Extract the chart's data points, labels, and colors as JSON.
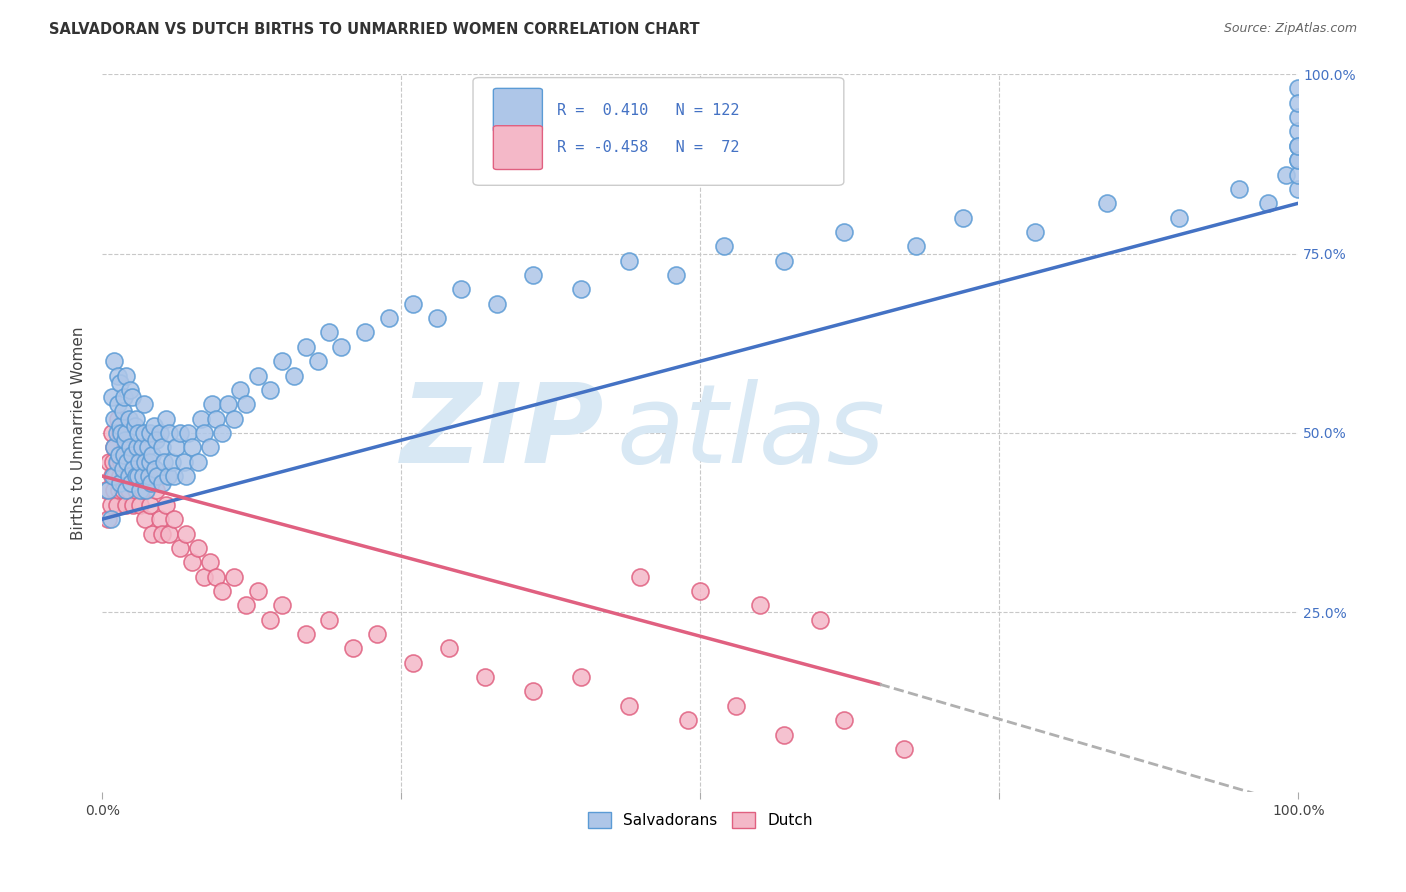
{
  "title": "SALVADORAN VS DUTCH BIRTHS TO UNMARRIED WOMEN CORRELATION CHART",
  "source": "Source: ZipAtlas.com",
  "ylabel": "Births to Unmarried Women",
  "background_color": "#ffffff",
  "grid_color": "#c8c8c8",
  "salvadoran_color": "#aec6e8",
  "salvadoran_edge_color": "#5b9bd5",
  "dutch_color": "#f4b8c8",
  "dutch_edge_color": "#e06080",
  "trend_salvadoran_color": "#4472c4",
  "trend_dutch_color": "#e06080",
  "trend_dutch_dash_color": "#b0b0b0",
  "r_salvadoran": 0.41,
  "n_salvadoran": 122,
  "r_dutch": -0.458,
  "n_dutch": 72,
  "watermark_zip": "ZIP",
  "watermark_atlas": "atlas",
  "watermark_color": "#d8e8f4",
  "xlim": [
    0.0,
    1.0
  ],
  "ylim": [
    0.0,
    1.0
  ],
  "salv_x": [
    0.005,
    0.007,
    0.008,
    0.009,
    0.01,
    0.01,
    0.01,
    0.012,
    0.012,
    0.013,
    0.013,
    0.014,
    0.015,
    0.015,
    0.015,
    0.016,
    0.017,
    0.017,
    0.018,
    0.018,
    0.019,
    0.02,
    0.02,
    0.02,
    0.021,
    0.022,
    0.022,
    0.023,
    0.023,
    0.024,
    0.025,
    0.025,
    0.026,
    0.027,
    0.028,
    0.028,
    0.029,
    0.03,
    0.03,
    0.031,
    0.032,
    0.033,
    0.034,
    0.035,
    0.035,
    0.036,
    0.037,
    0.038,
    0.039,
    0.04,
    0.04,
    0.041,
    0.042,
    0.043,
    0.044,
    0.045,
    0.046,
    0.048,
    0.05,
    0.05,
    0.052,
    0.053,
    0.055,
    0.056,
    0.058,
    0.06,
    0.062,
    0.065,
    0.068,
    0.07,
    0.072,
    0.075,
    0.08,
    0.083,
    0.085,
    0.09,
    0.092,
    0.095,
    0.1,
    0.105,
    0.11,
    0.115,
    0.12,
    0.13,
    0.14,
    0.15,
    0.16,
    0.17,
    0.18,
    0.19,
    0.2,
    0.22,
    0.24,
    0.26,
    0.28,
    0.3,
    0.33,
    0.36,
    0.4,
    0.44,
    0.48,
    0.52,
    0.57,
    0.62,
    0.68,
    0.72,
    0.78,
    0.84,
    0.9,
    0.95,
    0.975,
    0.99,
    1.0,
    1.0,
    1.0,
    1.0,
    1.0,
    1.0,
    1.0,
    1.0,
    1.0,
    1.0
  ],
  "salv_y": [
    0.42,
    0.38,
    0.55,
    0.44,
    0.48,
    0.52,
    0.6,
    0.46,
    0.5,
    0.54,
    0.58,
    0.47,
    0.43,
    0.51,
    0.57,
    0.5,
    0.45,
    0.53,
    0.47,
    0.55,
    0.49,
    0.42,
    0.5,
    0.58,
    0.46,
    0.44,
    0.52,
    0.48,
    0.56,
    0.43,
    0.47,
    0.55,
    0.45,
    0.51,
    0.44,
    0.52,
    0.48,
    0.44,
    0.5,
    0.46,
    0.42,
    0.48,
    0.44,
    0.5,
    0.54,
    0.46,
    0.42,
    0.48,
    0.44,
    0.46,
    0.5,
    0.43,
    0.47,
    0.51,
    0.45,
    0.49,
    0.44,
    0.5,
    0.43,
    0.48,
    0.46,
    0.52,
    0.44,
    0.5,
    0.46,
    0.44,
    0.48,
    0.5,
    0.46,
    0.44,
    0.5,
    0.48,
    0.46,
    0.52,
    0.5,
    0.48,
    0.54,
    0.52,
    0.5,
    0.54,
    0.52,
    0.56,
    0.54,
    0.58,
    0.56,
    0.6,
    0.58,
    0.62,
    0.6,
    0.64,
    0.62,
    0.64,
    0.66,
    0.68,
    0.66,
    0.7,
    0.68,
    0.72,
    0.7,
    0.74,
    0.72,
    0.76,
    0.74,
    0.78,
    0.76,
    0.8,
    0.78,
    0.82,
    0.8,
    0.84,
    0.82,
    0.86,
    0.84,
    0.88,
    0.86,
    0.9,
    0.88,
    0.92,
    0.9,
    0.94,
    0.98,
    0.96
  ],
  "dutch_x": [
    0.003,
    0.005,
    0.006,
    0.007,
    0.008,
    0.008,
    0.009,
    0.01,
    0.01,
    0.011,
    0.012,
    0.013,
    0.013,
    0.014,
    0.015,
    0.015,
    0.016,
    0.017,
    0.018,
    0.019,
    0.02,
    0.02,
    0.022,
    0.023,
    0.025,
    0.026,
    0.028,
    0.03,
    0.032,
    0.034,
    0.036,
    0.038,
    0.04,
    0.042,
    0.045,
    0.048,
    0.05,
    0.053,
    0.056,
    0.06,
    0.065,
    0.07,
    0.075,
    0.08,
    0.085,
    0.09,
    0.095,
    0.1,
    0.11,
    0.12,
    0.13,
    0.14,
    0.15,
    0.17,
    0.19,
    0.21,
    0.23,
    0.26,
    0.29,
    0.32,
    0.36,
    0.4,
    0.44,
    0.49,
    0.53,
    0.57,
    0.62,
    0.67,
    0.45,
    0.5,
    0.55,
    0.6
  ],
  "dutch_y": [
    0.42,
    0.38,
    0.46,
    0.4,
    0.44,
    0.5,
    0.46,
    0.42,
    0.48,
    0.44,
    0.4,
    0.46,
    0.52,
    0.42,
    0.44,
    0.5,
    0.46,
    0.42,
    0.44,
    0.48,
    0.4,
    0.46,
    0.42,
    0.44,
    0.46,
    0.4,
    0.42,
    0.44,
    0.4,
    0.42,
    0.38,
    0.44,
    0.4,
    0.36,
    0.42,
    0.38,
    0.36,
    0.4,
    0.36,
    0.38,
    0.34,
    0.36,
    0.32,
    0.34,
    0.3,
    0.32,
    0.3,
    0.28,
    0.3,
    0.26,
    0.28,
    0.24,
    0.26,
    0.22,
    0.24,
    0.2,
    0.22,
    0.18,
    0.2,
    0.16,
    0.14,
    0.16,
    0.12,
    0.1,
    0.12,
    0.08,
    0.1,
    0.06,
    0.3,
    0.28,
    0.26,
    0.24
  ],
  "trend_salv_x0": 0.0,
  "trend_salv_y0": 0.38,
  "trend_salv_x1": 1.0,
  "trend_salv_y1": 0.82,
  "trend_dutch_x0": 0.0,
  "trend_dutch_y0": 0.44,
  "trend_dutch_x1": 0.65,
  "trend_dutch_y1": 0.15,
  "trend_dutch_dash_x0": 0.65,
  "trend_dutch_dash_y0": 0.15,
  "trend_dutch_dash_x1": 1.0,
  "trend_dutch_dash_y1": -0.02
}
